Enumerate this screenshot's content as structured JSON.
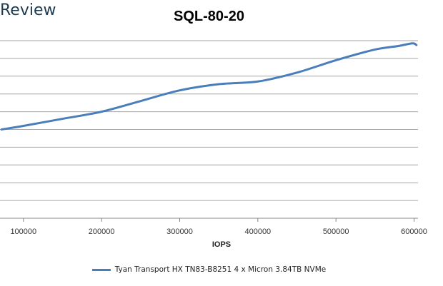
{
  "logo_text": "Review",
  "chart_data": {
    "type": "line",
    "title": "SQL-80-20",
    "xlabel": "IOPS",
    "ylabel": "",
    "xlim": [
      70000,
      605000
    ],
    "ylim": [
      0,
      10
    ],
    "x_ticks": [
      100000,
      200000,
      300000,
      400000,
      500000,
      600000
    ],
    "x_tick_labels": [
      "100000",
      "200000",
      "300000",
      "400000",
      "500000",
      "600000"
    ],
    "y_gridlines": 10,
    "grid": true,
    "legend_position": "bottom",
    "series": [
      {
        "name": "Tyan Transport HX TN83-B8251 4 x Micron 3.84TB NVMe",
        "color": "#4a7ebb",
        "x": [
          72000,
          100000,
          150000,
          200000,
          250000,
          300000,
          350000,
          400000,
          450000,
          500000,
          550000,
          580000,
          598000,
          603000
        ],
        "y": [
          5.0,
          5.2,
          5.6,
          6.0,
          6.6,
          7.2,
          7.55,
          7.7,
          8.2,
          8.9,
          9.5,
          9.7,
          9.85,
          9.75
        ]
      }
    ]
  }
}
